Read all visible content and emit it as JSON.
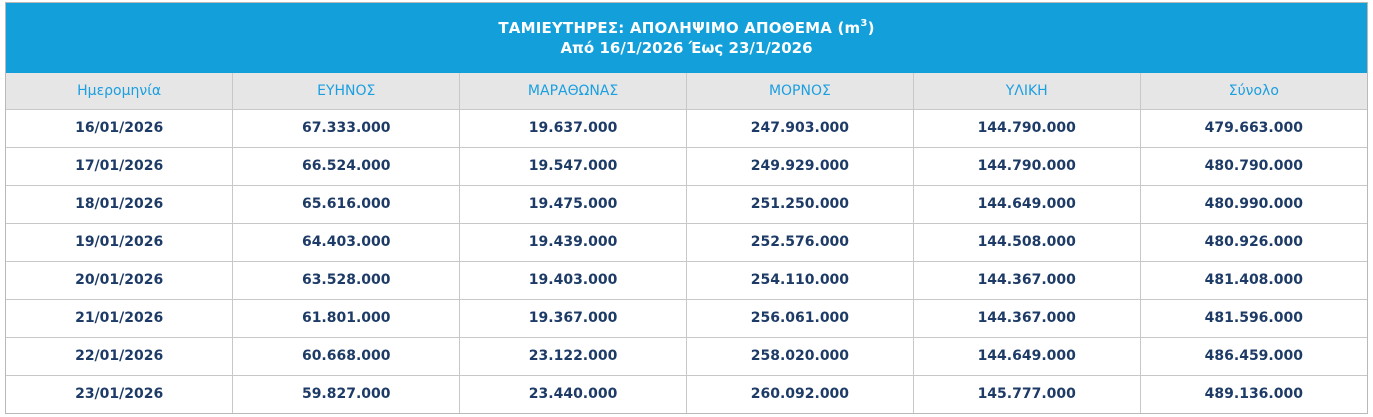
{
  "title": {
    "line1_prefix": "ΤΑΜΙΕΥΤΗΡΕΣ: ΑΠΟΛΗΨΙΜΟ ΑΠΟΘΕΜΑ (m",
    "line1_sup": "3",
    "line1_suffix": ")",
    "line2": "Από 16/1/2026 Έως 23/1/2026"
  },
  "columns": [
    "Ημερομηνία",
    "ΕΥΗΝΟΣ",
    "ΜΑΡΑΘΩΝΑΣ",
    "ΜΟΡΝΟΣ",
    "ΥΛΙΚΗ",
    "Σύνολο"
  ],
  "rows": [
    [
      "16/01/2026",
      "67.333.000",
      "19.637.000",
      "247.903.000",
      "144.790.000",
      "479.663.000"
    ],
    [
      "17/01/2026",
      "66.524.000",
      "19.547.000",
      "249.929.000",
      "144.790.000",
      "480.790.000"
    ],
    [
      "18/01/2026",
      "65.616.000",
      "19.475.000",
      "251.250.000",
      "144.649.000",
      "480.990.000"
    ],
    [
      "19/01/2026",
      "64.403.000",
      "19.439.000",
      "252.576.000",
      "144.508.000",
      "480.926.000"
    ],
    [
      "20/01/2026",
      "63.528.000",
      "19.403.000",
      "254.110.000",
      "144.367.000",
      "481.408.000"
    ],
    [
      "21/01/2026",
      "61.801.000",
      "19.367.000",
      "256.061.000",
      "144.367.000",
      "481.596.000"
    ],
    [
      "22/01/2026",
      "60.668.000",
      "23.122.000",
      "258.020.000",
      "144.649.000",
      "486.459.000"
    ],
    [
      "23/01/2026",
      "59.827.000",
      "23.440.000",
      "260.092.000",
      "145.777.000",
      "489.136.000"
    ]
  ],
  "colors": {
    "header_bar": "#139fda",
    "column_header_bg": "#e6e6e6",
    "column_header_text": "#1a9fe0",
    "cell_text": "#1d3b66"
  }
}
